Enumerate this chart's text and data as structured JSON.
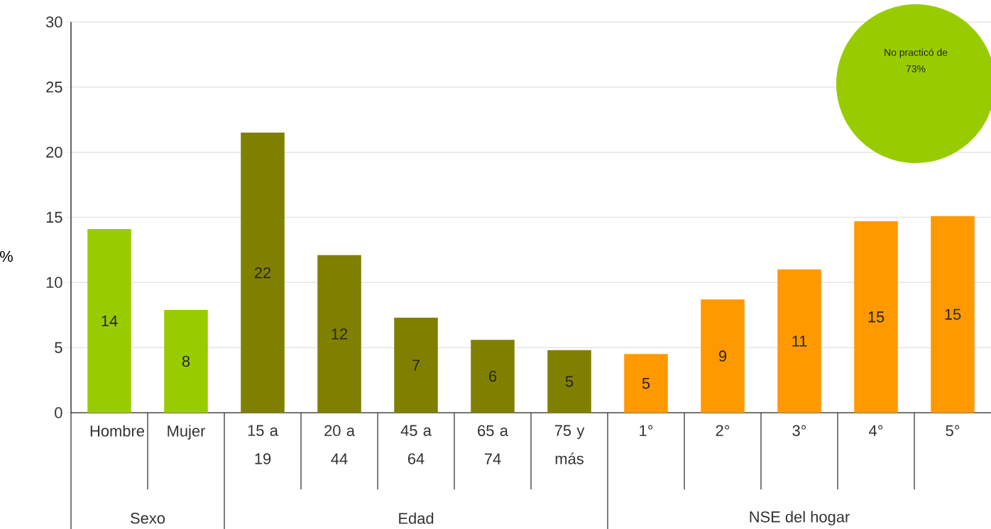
{
  "chart_data": {
    "type": "bar",
    "ylabel": "%",
    "categories": [
      "Hombre",
      "Mujer",
      "15 a 19",
      "20 a 44",
      "45 a 64",
      "65 a 74",
      "75 y más",
      "1°",
      "2°",
      "3°",
      "4°",
      "5°"
    ],
    "values": [
      14.1,
      7.9,
      21.5,
      12.1,
      7.3,
      5.6,
      4.8,
      4.5,
      8.7,
      11.0,
      14.7,
      15.1
    ],
    "value_labels": [
      "14",
      "8",
      "22",
      "12",
      "7",
      "6",
      "5",
      "5",
      "9",
      "11",
      "15",
      "15"
    ],
    "colors": [
      "#99cc00",
      "#99cc00",
      "#808000",
      "#808000",
      "#808000",
      "#808000",
      "#808000",
      "#ff9900",
      "#ff9900",
      "#ff9900",
      "#ff9900",
      "#ff9900"
    ],
    "ylim": [
      0,
      30
    ],
    "yticks": [
      0,
      5,
      10,
      15,
      20,
      25,
      30
    ],
    "grid": "y",
    "annotations": [
      "Sexo",
      "Edad",
      "NSE del hogar",
      "No practicó de",
      "73%"
    ]
  }
}
